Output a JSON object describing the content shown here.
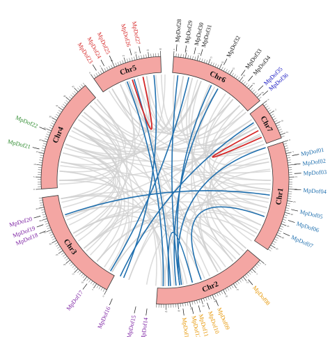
{
  "colors": {
    "chromosome_fill": "#f4a6a3",
    "chromosome_stroke": "#333333",
    "background_link": "#d0d0d0",
    "segmental_link": "#1f6fae",
    "tandem_link": "#d62828"
  },
  "chromosomes": [
    {
      "id": "chr1",
      "label": "Chr1",
      "start_deg": 72,
      "end_deg": 124,
      "color": "#1f6fae"
    },
    {
      "id": "chr2",
      "label": "Chr2",
      "start_deg": 130,
      "end_deg": 184,
      "color": "#e69500"
    },
    {
      "id": "chr3",
      "label": "Chr3",
      "start_deg": 208,
      "end_deg": 262,
      "color": "#7b1fa2"
    },
    {
      "id": "chr4",
      "label": "Chr4",
      "start_deg": 266,
      "end_deg": 320,
      "color": "#2e8b2e"
    },
    {
      "id": "chr5",
      "label": "Chr5",
      "start_deg": 325,
      "end_deg": 358,
      "color": "#d62828"
    },
    {
      "id": "chr6",
      "label": "Chr6",
      "start_deg": 4,
      "end_deg": 50,
      "color": "#111111"
    },
    {
      "id": "chr7",
      "label": "Chr7",
      "start_deg": 52,
      "end_deg": 70,
      "color": "#1010c0"
    }
  ],
  "genes": [
    {
      "label": "MpDof01",
      "chr": "chr1",
      "deg": 79
    },
    {
      "label": "MpDof02",
      "chr": "chr1",
      "deg": 83
    },
    {
      "label": "MpDof03",
      "chr": "chr1",
      "deg": 87
    },
    {
      "label": "MpDof04",
      "chr": "chr1",
      "deg": 94
    },
    {
      "label": "MpDof05",
      "chr": "chr1",
      "deg": 103
    },
    {
      "label": "MpDof06",
      "chr": "chr1",
      "deg": 108
    },
    {
      "label": "MpDof07",
      "chr": "chr1",
      "deg": 114
    },
    {
      "label": "MpDof08",
      "chr": "chr2",
      "deg": 140
    },
    {
      "label": "MpDof09",
      "chr": "chr2",
      "deg": 157
    },
    {
      "label": "MpDof10",
      "chr": "chr2",
      "deg": 161
    },
    {
      "label": "MpDof11",
      "chr": "chr2",
      "deg": 165
    },
    {
      "label": "MpDof12",
      "chr": "chr2",
      "deg": 168
    },
    {
      "label": "MpDof13",
      "chr": "chr2",
      "deg": 172
    },
    {
      "label": "MpDof14",
      "chr": "chr3",
      "deg": 188
    },
    {
      "label": "MpDof15",
      "chr": "chr3",
      "deg": 193
    },
    {
      "label": "MpDof16",
      "chr": "chr3",
      "deg": 204
    },
    {
      "label": "MpDof17",
      "chr": "chr3",
      "deg": 217
    },
    {
      "label": "MpDof18",
      "chr": "chr3",
      "deg": 247
    },
    {
      "label": "MpDof19",
      "chr": "chr3",
      "deg": 250
    },
    {
      "label": "MpDof20",
      "chr": "chr3",
      "deg": 254
    },
    {
      "label": "MpDof21",
      "chr": "chr4",
      "deg": 284
    },
    {
      "label": "MpDof22",
      "chr": "chr4",
      "deg": 293
    },
    {
      "label": "MpDof23",
      "chr": "chr5",
      "deg": 328
    },
    {
      "label": "MpDof24",
      "chr": "chr5",
      "deg": 332
    },
    {
      "label": "MpDof25",
      "chr": "chr5",
      "deg": 336
    },
    {
      "label": "MpDof26",
      "chr": "chr5",
      "deg": 345
    },
    {
      "label": "MpDof27",
      "chr": "chr5",
      "deg": 349
    },
    {
      "label": "MpDof28",
      "chr": "chr6",
      "deg": 5
    },
    {
      "label": "MpDof29",
      "chr": "chr6",
      "deg": 9
    },
    {
      "label": "MpDof30",
      "chr": "chr6",
      "deg": 13
    },
    {
      "label": "MpDof31",
      "chr": "chr6",
      "deg": 16
    },
    {
      "label": "MpDof32",
      "chr": "chr6",
      "deg": 27
    },
    {
      "label": "MpDof33",
      "chr": "chr6",
      "deg": 36
    },
    {
      "label": "MpDof34",
      "chr": "chr6",
      "deg": 40
    },
    {
      "label": "MpDof35",
      "chr": "chr7",
      "deg": 46
    },
    {
      "label": "MpDof36",
      "chr": "chr7",
      "deg": 49
    }
  ],
  "segmental_links": [
    [
      339,
      181
    ],
    [
      343,
      177
    ],
    [
      354,
      203
    ],
    [
      7,
      172
    ],
    [
      13,
      211
    ],
    [
      30,
      174
    ],
    [
      72,
      172
    ],
    [
      98,
      251
    ],
    [
      110,
      160
    ],
    [
      26,
      171
    ],
    [
      57,
      205
    ],
    [
      165,
      178
    ]
  ],
  "tandem_links": [
    [
      342,
      348
    ],
    [
      62,
      66
    ]
  ],
  "background_links": [
    [
      75,
      200
    ],
    [
      80,
      230
    ],
    [
      85,
      290
    ],
    [
      90,
      300
    ],
    [
      95,
      310
    ],
    [
      100,
      280
    ],
    [
      105,
      260
    ],
    [
      110,
      240
    ],
    [
      115,
      220
    ],
    [
      120,
      315
    ],
    [
      135,
      300
    ],
    [
      140,
      270
    ],
    [
      145,
      250
    ],
    [
      150,
      330
    ],
    [
      155,
      340
    ],
    [
      160,
      290
    ],
    [
      170,
      320
    ],
    [
      175,
      345
    ],
    [
      180,
      275
    ],
    [
      185,
      305
    ],
    [
      210,
      310
    ],
    [
      215,
      300
    ],
    [
      220,
      290
    ],
    [
      225,
      280
    ],
    [
      230,
      275
    ],
    [
      235,
      320
    ],
    [
      240,
      335
    ],
    [
      245,
      300
    ],
    [
      255,
      285
    ],
    [
      260,
      315
    ],
    [
      270,
      335
    ],
    [
      275,
      350
    ],
    [
      280,
      10
    ],
    [
      285,
      20
    ],
    [
      290,
      30
    ],
    [
      295,
      40
    ],
    [
      300,
      45
    ],
    [
      305,
      55
    ],
    [
      310,
      60
    ],
    [
      315,
      65
    ],
    [
      330,
      20
    ],
    [
      335,
      30
    ],
    [
      340,
      40
    ],
    [
      345,
      50
    ],
    [
      350,
      60
    ],
    [
      355,
      15
    ],
    [
      10,
      100
    ],
    [
      15,
      110
    ],
    [
      20,
      120
    ],
    [
      25,
      140
    ],
    [
      30,
      150
    ],
    [
      35,
      90
    ],
    [
      40,
      80
    ],
    [
      45,
      130
    ],
    [
      50,
      200
    ],
    [
      55,
      230
    ],
    [
      60,
      250
    ],
    [
      65,
      270
    ],
    [
      68,
      290
    ],
    [
      72,
      330
    ],
    [
      78,
      130
    ],
    [
      84,
      150
    ],
    [
      92,
      140
    ],
    [
      96,
      165
    ],
    [
      102,
      190
    ],
    [
      108,
      210
    ],
    [
      118,
      150
    ],
    [
      122,
      180
    ],
    [
      132,
      220
    ],
    [
      138,
      240
    ],
    [
      148,
      210
    ],
    [
      158,
      230
    ],
    [
      168,
      260
    ],
    [
      178,
      240
    ],
    [
      182,
      290
    ],
    [
      212,
      250
    ],
    [
      228,
      260
    ],
    [
      238,
      300
    ],
    [
      248,
      290
    ],
    [
      258,
      300
    ],
    [
      268,
      310
    ],
    [
      278,
      300
    ],
    [
      288,
      310
    ],
    [
      298,
      320
    ],
    [
      308,
      340
    ],
    [
      318,
      350
    ],
    [
      328,
      0
    ],
    [
      338,
      10
    ],
    [
      348,
      20
    ],
    [
      358,
      30
    ],
    [
      5,
      45
    ],
    [
      18,
      60
    ],
    [
      28,
      70
    ],
    [
      38,
      95
    ],
    [
      48,
      105
    ],
    [
      58,
      115
    ],
    [
      64,
      125
    ],
    [
      70,
      135
    ]
  ],
  "ticks": [
    "0",
    "5",
    "10",
    "15",
    "20",
    "25",
    "30",
    "35",
    "40",
    "45",
    "50",
    "55",
    "60",
    "65",
    "70",
    "75",
    "80"
  ]
}
